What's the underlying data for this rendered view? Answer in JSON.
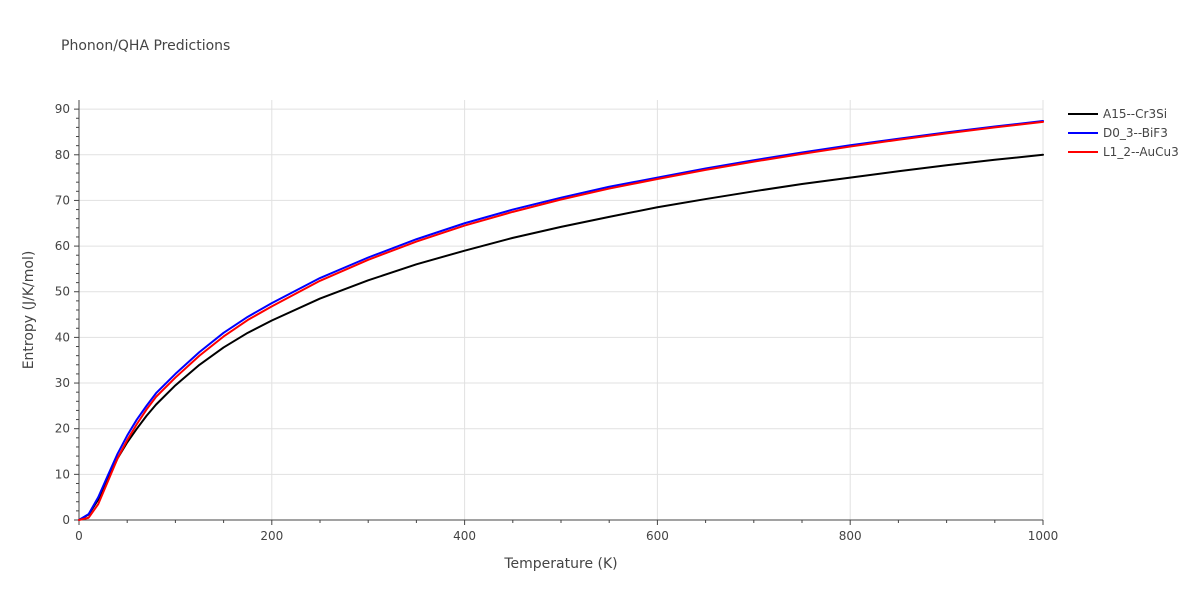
{
  "chart_data": {
    "type": "line",
    "title": "Phonon/QHA Predictions",
    "xlabel": "Temperature (K)",
    "ylabel": "Entropy (J/K/mol)",
    "xlim": [
      0,
      1000
    ],
    "ylim": [
      0,
      92
    ],
    "x_ticks": [
      0,
      200,
      400,
      600,
      800,
      1000
    ],
    "y_ticks": [
      0,
      10,
      20,
      30,
      40,
      50,
      60,
      70,
      80,
      90
    ],
    "grid": true,
    "legend_position": "top-right",
    "series": [
      {
        "name": "A15--Cr3Si",
        "color": "#000000",
        "x": [
          0,
          10,
          20,
          30,
          40,
          50,
          60,
          70,
          80,
          100,
          125,
          150,
          175,
          200,
          250,
          300,
          350,
          400,
          450,
          500,
          550,
          600,
          650,
          700,
          750,
          800,
          850,
          900,
          950,
          1000
        ],
        "y": [
          0,
          1.2,
          4.5,
          9,
          13.5,
          17,
          20,
          22.8,
          25.3,
          29.5,
          34,
          37.8,
          41,
          43.7,
          48.5,
          52.5,
          56,
          59,
          61.8,
          64.2,
          66.4,
          68.5,
          70.3,
          72,
          73.6,
          75,
          76.4,
          77.7,
          78.9,
          80
        ]
      },
      {
        "name": "D0_3--BiF3",
        "color": "#0000ff",
        "x": [
          0,
          10,
          20,
          30,
          40,
          50,
          60,
          70,
          80,
          100,
          125,
          150,
          175,
          200,
          250,
          300,
          350,
          400,
          450,
          500,
          550,
          600,
          650,
          700,
          750,
          800,
          850,
          900,
          950,
          1000
        ],
        "y": [
          0,
          1.3,
          5,
          9.8,
          14.5,
          18.5,
          22,
          25,
          27.8,
          32,
          36.8,
          41,
          44.5,
          47.5,
          53,
          57.5,
          61.5,
          65,
          68,
          70.6,
          73,
          75,
          77,
          78.8,
          80.5,
          82.1,
          83.5,
          84.9,
          86.2,
          87.4
        ]
      },
      {
        "name": "L1_2--AuCu3",
        "color": "#ff0000",
        "x": [
          0,
          10,
          20,
          30,
          40,
          50,
          60,
          70,
          80,
          100,
          125,
          150,
          175,
          200,
          250,
          300,
          350,
          400,
          450,
          500,
          550,
          600,
          650,
          700,
          750,
          800,
          850,
          900,
          950,
          1000
        ],
        "y": [
          0,
          0.5,
          3.5,
          8.5,
          13.5,
          17.5,
          21,
          24.2,
          27,
          31.2,
          36,
          40.2,
          43.8,
          46.8,
          52.4,
          57,
          61,
          64.5,
          67.5,
          70.2,
          72.6,
          74.7,
          76.7,
          78.5,
          80.2,
          81.8,
          83.3,
          84.7,
          86,
          87.2
        ]
      }
    ]
  }
}
